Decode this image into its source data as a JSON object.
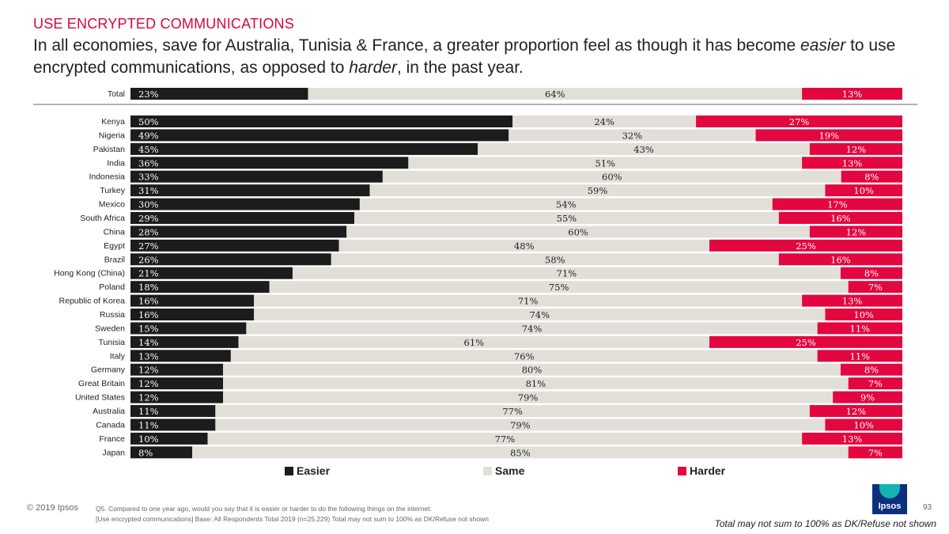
{
  "header": {
    "section_title": "USE ENCRYPTED COMMUNICATIONS",
    "headline_a": "In all economies, save for Australia, Tunisia & France, a greater proportion feel as though it has become ",
    "headline_em1": "easier",
    "headline_b": " to use encrypted communications, as opposed to ",
    "headline_em2": "harder",
    "headline_c": ", in the past year."
  },
  "colors": {
    "easier": "#1c1c1c",
    "same": "#e1dfd7",
    "harder": "#e3073f",
    "brand": "#d7063f"
  },
  "chart_data": {
    "type": "bar",
    "orientation": "horizontal",
    "stacked": true,
    "percent": true,
    "categories": [
      "Total",
      "Kenya",
      "Nigeria",
      "Pakistan",
      "India",
      "Indonesia",
      "Turkey",
      "Mexico",
      "South Africa",
      "China",
      "Egypt",
      "Brazil",
      "Hong Kong (China)",
      "Poland",
      "Republic of Korea",
      "Russia",
      "Sweden",
      "Tunisia",
      "Italy",
      "Germany",
      "Great Britain",
      "United States",
      "Australia",
      "Canada",
      "France",
      "Japan"
    ],
    "series": [
      {
        "name": "Easier",
        "values": [
          23,
          50,
          49,
          45,
          36,
          33,
          31,
          30,
          29,
          28,
          27,
          26,
          21,
          18,
          16,
          16,
          15,
          14,
          13,
          12,
          12,
          12,
          11,
          11,
          10,
          8
        ]
      },
      {
        "name": "Same",
        "values": [
          64,
          24,
          32,
          43,
          51,
          60,
          59,
          54,
          55,
          60,
          48,
          58,
          71,
          75,
          71,
          74,
          74,
          61,
          76,
          80,
          81,
          79,
          77,
          79,
          77,
          85
        ]
      },
      {
        "name": "Harder",
        "values": [
          13,
          27,
          19,
          12,
          13,
          8,
          10,
          17,
          16,
          12,
          25,
          16,
          8,
          7,
          13,
          10,
          11,
          25,
          11,
          8,
          7,
          9,
          12,
          10,
          13,
          7
        ]
      }
    ],
    "legend": "bottom",
    "grid": false
  },
  "footer": {
    "copyright": "© 2019 Ipsos",
    "question_line1": "Q5. Compared to one year ago, would you say that it is easier or harder to do the following things on the internet:",
    "question_line2": "[Use encrypted communications] Base: All Respondents Total 2019 (n=25,229) Total may not sum to 100% as DK/Refuse not shown",
    "note": "Total may not sum to 100% as DK/Refuse not shown",
    "page_number": "93",
    "logo_text": "Ipsos"
  }
}
